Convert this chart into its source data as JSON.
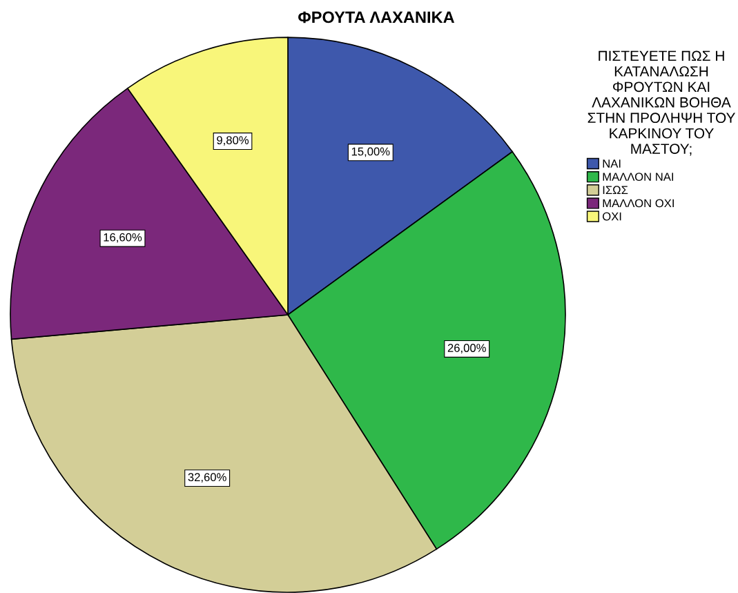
{
  "chart_data": {
    "type": "pie",
    "title": "ΦΡΟΥΤΑ ΛΑΧΑΝΙΚΑ",
    "legend_title": "ΠΙΣΤΕΥΕΤΕ ΠΩΣ Η\nΚΑΤΑΝΑΛΩΣΗ\nΦΡΟΥΤΩΝ ΚΑΙ\nΛΑΧΑΝΙΚΩΝ ΒΟΗΘΑ\nΣΤΗΝ ΠΡΟΛΗΨΗ ΤΟΥ\nΚΑΡΚΙΝΟΥ ΤΟΥ\nΜΑΣΤΟΥ;",
    "categories": [
      "ΝΑΙ",
      "ΜΑΛΛΟΝ ΝΑΙ",
      "ΙΣΩΣ",
      "ΜΑΛΛΟΝ ΟΧΙ",
      "ΟΧΙ"
    ],
    "values": [
      15.0,
      26.0,
      32.6,
      16.6,
      9.8
    ],
    "colors": [
      "#3e58ac",
      "#2fb84a",
      "#d3ce97",
      "#7b287b",
      "#f8f67a"
    ],
    "value_labels": [
      "15,00%",
      "26,00%",
      "32,60%",
      "16,60%",
      "9,80%"
    ],
    "legend": "top right"
  }
}
